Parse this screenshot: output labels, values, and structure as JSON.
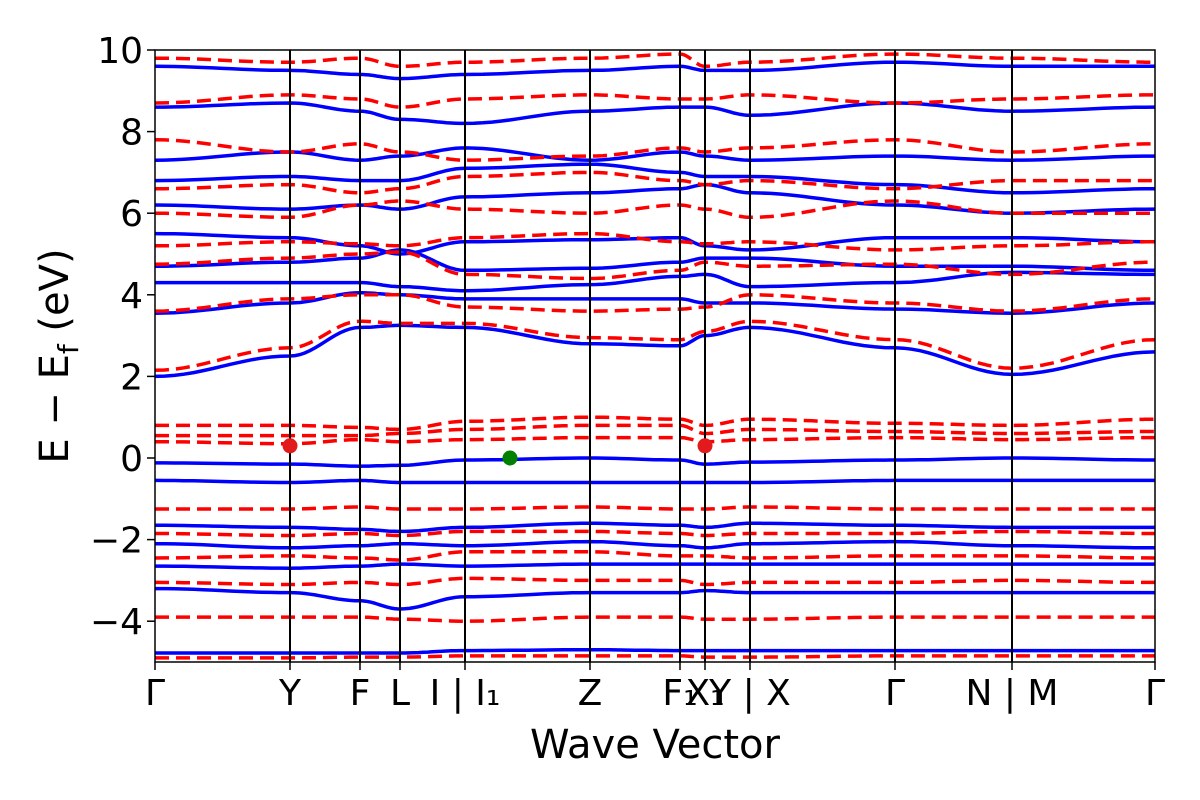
{
  "chart_data": {
    "type": "line",
    "title": "",
    "xlabel": "Wave Vector",
    "ylabel": "E − E_f (eV)",
    "ylabel_parts": {
      "main": "E − E",
      "sub": "f",
      "unit": " (eV)"
    },
    "ylim": [
      -5,
      10
    ],
    "yticks": [
      -4,
      -2,
      0,
      2,
      4,
      6,
      8,
      10
    ],
    "ytick_labels": [
      "−4",
      "−2",
      "0",
      "2",
      "4",
      "6",
      "8",
      "10"
    ],
    "xlim": [
      0,
      1
    ],
    "kpath": [
      {
        "label": "Γ",
        "x": 0.0
      },
      {
        "label": "Y",
        "x": 0.135
      },
      {
        "label": "F",
        "x": 0.205
      },
      {
        "label": "L",
        "x": 0.245
      },
      {
        "label": "I | I₁",
        "x": 0.31
      },
      {
        "label": "Z",
        "x": 0.435
      },
      {
        "label": "F₁",
        "x": 0.525
      },
      {
        "label": "X₁",
        "x": 0.55
      },
      {
        "label": "Y | X",
        "x": 0.595
      },
      {
        "label": "Γ",
        "x": 0.74
      },
      {
        "label": "N | M",
        "x": 0.857
      },
      {
        "label": "Γ",
        "x": 1.0
      }
    ],
    "series": [
      {
        "style": "solid",
        "color": "#0000ff",
        "bands": [
          [
            -4.78,
            -4.78,
            -4.78,
            -4.78,
            -4.72,
            -4.7,
            -4.72,
            -4.72,
            -4.72,
            -4.72,
            -4.72,
            -4.72,
            -4.72
          ],
          [
            -3.2,
            -3.3,
            -3.5,
            -3.7,
            -3.4,
            -3.3,
            -3.3,
            -3.25,
            -3.3,
            -3.3,
            -3.3,
            -3.3,
            -3.3
          ],
          [
            -2.65,
            -2.7,
            -2.65,
            -2.6,
            -2.65,
            -2.6,
            -2.6,
            -2.6,
            -2.6,
            -2.6,
            -2.6,
            -2.6,
            -2.6
          ],
          [
            -2.1,
            -2.2,
            -2.15,
            -2.1,
            -2.15,
            -2.05,
            -2.15,
            -2.2,
            -2.1,
            -2.05,
            -2.15,
            -2.2,
            -2.0
          ],
          [
            -1.65,
            -1.7,
            -1.75,
            -1.8,
            -1.7,
            -1.6,
            -1.65,
            -1.7,
            -1.6,
            -1.65,
            -1.7,
            -1.7,
            -1.65
          ],
          [
            -0.55,
            -0.6,
            -0.55,
            -0.6,
            -0.6,
            -0.6,
            -0.6,
            -0.6,
            -0.6,
            -0.55,
            -0.55,
            -0.55,
            -0.55
          ],
          [
            -0.12,
            -0.15,
            -0.2,
            -0.18,
            -0.05,
            0.0,
            -0.05,
            -0.15,
            -0.1,
            -0.05,
            0.0,
            -0.05,
            -0.05
          ],
          [
            2.0,
            2.5,
            3.2,
            3.25,
            3.2,
            2.8,
            2.75,
            3.0,
            3.2,
            2.7,
            2.05,
            2.6,
            2.0
          ],
          [
            3.55,
            3.8,
            4.05,
            4.0,
            3.9,
            3.9,
            3.9,
            3.8,
            3.8,
            3.65,
            3.55,
            3.8,
            3.55
          ],
          [
            4.3,
            4.3,
            4.3,
            4.2,
            4.1,
            4.25,
            4.45,
            4.5,
            4.2,
            4.3,
            4.55,
            4.5,
            4.3
          ],
          [
            4.7,
            4.8,
            4.9,
            5.1,
            4.6,
            4.65,
            4.8,
            4.9,
            4.9,
            4.7,
            4.7,
            4.6,
            4.8
          ],
          [
            5.5,
            5.4,
            5.2,
            5.0,
            5.3,
            5.35,
            5.4,
            5.2,
            5.1,
            5.4,
            5.4,
            5.3,
            5.5
          ],
          [
            6.2,
            6.1,
            6.2,
            6.1,
            6.4,
            6.5,
            6.6,
            6.7,
            6.5,
            6.2,
            6.0,
            6.1,
            6.2
          ],
          [
            6.8,
            6.9,
            6.8,
            6.8,
            7.1,
            7.2,
            7.0,
            6.9,
            6.9,
            6.7,
            6.5,
            6.6,
            6.8
          ],
          [
            7.3,
            7.5,
            7.3,
            7.4,
            7.6,
            7.3,
            7.5,
            7.4,
            7.3,
            7.4,
            7.3,
            7.4,
            7.3
          ],
          [
            8.6,
            8.7,
            8.5,
            8.3,
            8.2,
            8.5,
            8.6,
            8.6,
            8.4,
            8.7,
            8.5,
            8.6,
            8.6
          ],
          [
            9.6,
            9.5,
            9.4,
            9.3,
            9.4,
            9.5,
            9.6,
            9.5,
            9.5,
            9.7,
            9.6,
            9.6,
            9.6
          ]
        ]
      },
      {
        "style": "dashed",
        "color": "#ff0000",
        "bands": [
          [
            -4.9,
            -4.9,
            -4.88,
            -4.88,
            -4.85,
            -4.85,
            -4.85,
            -4.88,
            -4.88,
            -4.85,
            -4.85,
            -4.85,
            -4.88
          ],
          [
            -3.9,
            -3.9,
            -3.9,
            -3.95,
            -4.0,
            -3.9,
            -3.9,
            -3.95,
            -3.95,
            -3.9,
            -3.9,
            -3.9,
            -3.9
          ],
          [
            -3.05,
            -3.1,
            -3.05,
            -3.1,
            -2.95,
            -3.0,
            -3.0,
            -3.1,
            -3.05,
            -3.05,
            -3.0,
            -3.05,
            -3.05
          ],
          [
            -2.45,
            -2.4,
            -2.45,
            -2.5,
            -2.3,
            -2.3,
            -2.4,
            -2.4,
            -2.45,
            -2.4,
            -2.4,
            -2.45,
            -2.45
          ],
          [
            -1.85,
            -1.9,
            -1.85,
            -1.9,
            -1.8,
            -1.8,
            -1.85,
            -1.9,
            -1.85,
            -1.85,
            -1.8,
            -1.85,
            -1.85
          ],
          [
            -1.25,
            -1.25,
            -1.2,
            -1.25,
            -1.25,
            -1.2,
            -1.25,
            -1.25,
            -1.2,
            -1.25,
            -1.25,
            -1.25,
            -1.25
          ],
          [
            0.4,
            0.35,
            0.45,
            0.4,
            0.45,
            0.5,
            0.5,
            0.4,
            0.45,
            0.5,
            0.45,
            0.5,
            0.45
          ],
          [
            0.55,
            0.55,
            0.55,
            0.6,
            0.7,
            0.8,
            0.8,
            0.6,
            0.7,
            0.65,
            0.6,
            0.65,
            0.6
          ],
          [
            0.8,
            0.8,
            0.75,
            0.7,
            0.9,
            1.0,
            0.95,
            0.8,
            0.95,
            0.85,
            0.8,
            0.95,
            0.85
          ],
          [
            2.15,
            2.7,
            3.35,
            3.3,
            3.3,
            2.95,
            2.9,
            3.1,
            3.35,
            2.9,
            2.2,
            2.9,
            2.2
          ],
          [
            3.6,
            3.9,
            4.0,
            4.0,
            3.7,
            3.6,
            3.65,
            3.7,
            4.0,
            3.8,
            3.6,
            3.9,
            3.6
          ],
          [
            4.75,
            4.9,
            5.0,
            5.05,
            4.5,
            4.4,
            4.6,
            4.8,
            4.7,
            4.75,
            4.5,
            4.8,
            4.75
          ],
          [
            5.2,
            5.3,
            5.25,
            5.2,
            5.4,
            5.5,
            5.3,
            5.25,
            5.3,
            5.1,
            5.2,
            5.3,
            5.2
          ],
          [
            6.0,
            5.9,
            6.2,
            6.3,
            6.1,
            6.0,
            6.2,
            6.1,
            5.9,
            6.3,
            6.0,
            6.0,
            6.0
          ],
          [
            6.6,
            6.7,
            6.5,
            6.6,
            6.9,
            7.0,
            6.8,
            6.7,
            6.8,
            6.6,
            6.8,
            6.8,
            6.6
          ],
          [
            7.8,
            7.5,
            7.7,
            7.5,
            7.3,
            7.4,
            7.6,
            7.5,
            7.6,
            7.8,
            7.5,
            7.7,
            7.8
          ],
          [
            8.7,
            8.9,
            8.8,
            8.6,
            8.8,
            8.9,
            8.8,
            8.8,
            8.9,
            8.7,
            8.8,
            8.9,
            8.7
          ],
          [
            9.8,
            9.7,
            9.8,
            9.6,
            9.7,
            9.8,
            9.9,
            9.6,
            9.7,
            9.9,
            9.8,
            9.7,
            9.8
          ]
        ]
      }
    ],
    "markers": [
      {
        "x": 0.135,
        "y": 0.3,
        "color": "#e31a1c"
      },
      {
        "x": 0.355,
        "y": 0.0,
        "color": "#008000"
      },
      {
        "x": 0.55,
        "y": 0.3,
        "color": "#e31a1c"
      }
    ]
  }
}
